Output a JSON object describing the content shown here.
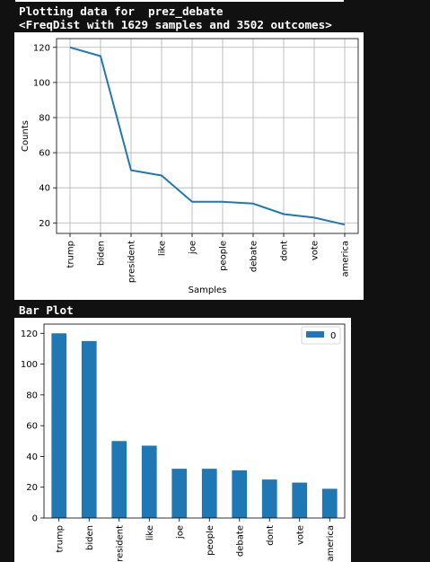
{
  "header": {
    "line1": "Plotting data for  prez_debate",
    "line2": "<FreqDist with 1629 samples and 3502 outcomes>",
    "bar_title": "Bar Plot"
  },
  "chart_data": [
    {
      "type": "line",
      "categories": [
        "trump",
        "biden",
        "president",
        "like",
        "joe",
        "people",
        "debate",
        "dont",
        "vote",
        "america"
      ],
      "values": [
        120,
        115,
        50,
        47,
        32,
        32,
        31,
        25,
        23,
        19
      ],
      "xlabel": "Samples",
      "ylabel": "Counts",
      "yticks": [
        20,
        40,
        60,
        80,
        100,
        120
      ],
      "ylim": [
        14,
        125
      ],
      "grid": true,
      "color": "#1f77b4"
    },
    {
      "type": "bar",
      "categories": [
        "trump",
        "biden",
        "president",
        "like",
        "joe",
        "people",
        "debate",
        "dont",
        "vote",
        "america"
      ],
      "series": [
        {
          "name": "0",
          "values": [
            120,
            115,
            50,
            47,
            32,
            32,
            31,
            25,
            23,
            19
          ]
        }
      ],
      "yticks": [
        0,
        20,
        40,
        60,
        80,
        100,
        120
      ],
      "ylim": [
        0,
        126
      ],
      "grid": false,
      "legend": "top-right",
      "color": "#1f77b4"
    }
  ]
}
